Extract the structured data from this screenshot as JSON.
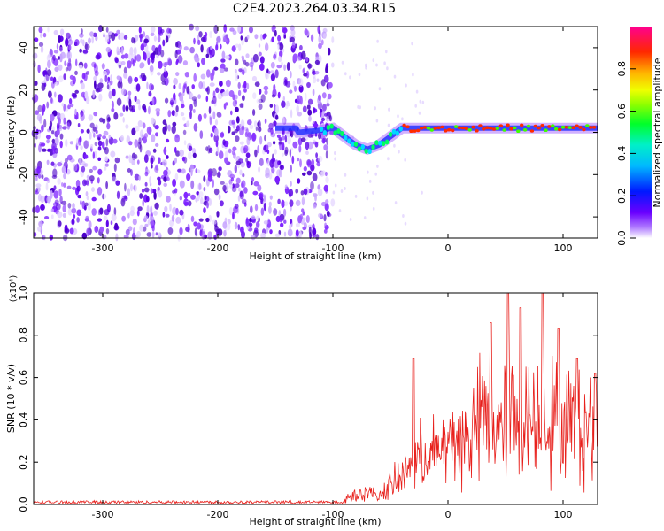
{
  "title": "C2E4.2023.264.03.34.R15",
  "colors": {
    "dots": "#7a1cff",
    "line": "#e8201c",
    "axis": "#000000"
  },
  "chart_data": [
    {
      "type": "heatmap",
      "xlabel": "Height of straight line (km)",
      "ylabel": "Frequency (Hz)",
      "xlim": [
        -360,
        130
      ],
      "ylim": [
        -50,
        50
      ],
      "xticks": [
        -300,
        -200,
        -100,
        0,
        100
      ],
      "yticks": [
        -40,
        -20,
        0,
        20,
        40
      ],
      "noise_band": {
        "x": [
          -360,
          -100
        ],
        "y": [
          -50,
          50
        ]
      },
      "ridge": [
        {
          "x": -130,
          "y": 0
        },
        {
          "x": -110,
          "y": 1
        },
        {
          "x": -100,
          "y": 2
        },
        {
          "x": -90,
          "y": -2
        },
        {
          "x": -80,
          "y": -6
        },
        {
          "x": -70,
          "y": -8
        },
        {
          "x": -60,
          "y": -6
        },
        {
          "x": -50,
          "y": -2
        },
        {
          "x": -40,
          "y": 2
        },
        {
          "x": 0,
          "y": 2
        },
        {
          "x": 60,
          "y": 2
        },
        {
          "x": 130,
          "y": 2
        }
      ],
      "colorbar": {
        "label": "Normalized spectral amplitude",
        "range": [
          0,
          1
        ],
        "ticks": [
          "0.0",
          "0.2",
          "0.4",
          "0.6",
          "0.8"
        ]
      }
    },
    {
      "type": "line",
      "xlabel": "Height of straight line (km)",
      "ylabel": "SNR (10 * v/v)",
      "scale_note": "(x10⁴)",
      "xlim": [
        -360,
        130
      ],
      "ylim": [
        0,
        1.0
      ],
      "xticks": [
        -300,
        -200,
        -100,
        0,
        100
      ],
      "yticks": [
        "0.0",
        "0.2",
        "0.4",
        "0.6",
        "0.8",
        "1.0"
      ],
      "series": [
        {
          "x": [
            -360,
            -300,
            -200,
            -150,
            -110,
            -100,
            -90,
            -80,
            -70,
            -60,
            -50,
            -40,
            -30,
            -20,
            -10,
            0,
            10,
            20,
            30,
            40,
            50,
            60,
            70,
            80,
            90,
            100,
            110,
            120,
            130
          ],
          "y": [
            0.01,
            0.01,
            0.01,
            0.01,
            0.01,
            0.02,
            0.03,
            0.06,
            0.07,
            0.05,
            0.11,
            0.17,
            0.25,
            0.3,
            0.3,
            0.35,
            0.38,
            0.4,
            0.52,
            0.45,
            0.5,
            0.52,
            0.48,
            0.55,
            0.5,
            0.45,
            0.48,
            0.44,
            0.45
          ],
          "peaks": [
            {
              "x": -30,
              "y": 0.69
            },
            {
              "x": 37,
              "y": 0.86
            },
            {
              "x": 52,
              "y": 1.0
            },
            {
              "x": 63,
              "y": 0.93
            },
            {
              "x": 82,
              "y": 1.0
            },
            {
              "x": 96,
              "y": 0.83
            },
            {
              "x": 112,
              "y": 0.69
            },
            {
              "x": 128,
              "y": 0.62
            }
          ]
        }
      ]
    }
  ]
}
